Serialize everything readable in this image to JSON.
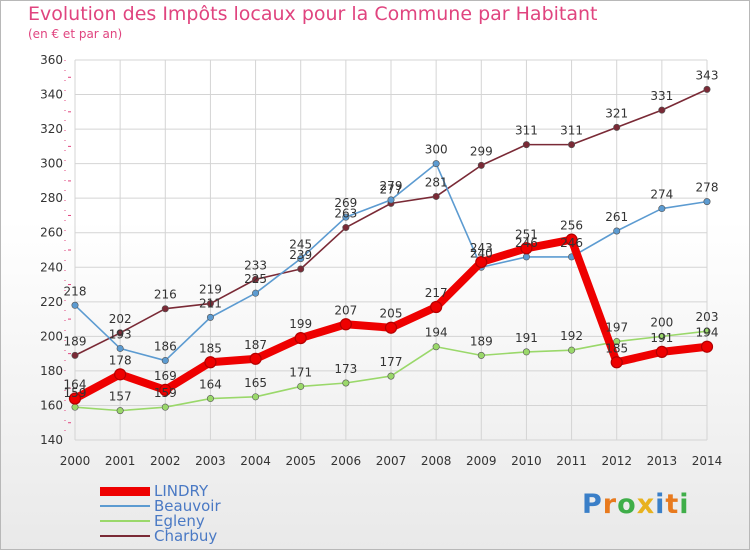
{
  "chart_data": {
    "type": "line",
    "title": "Evolution des Impôts locaux pour la Commune par Habitant",
    "subtitle": "(en € et par an)",
    "categories": [
      "2000",
      "2001",
      "2002",
      "2003",
      "2004",
      "2005",
      "2006",
      "2007",
      "2008",
      "2009",
      "2010",
      "2011",
      "2012",
      "2013",
      "2014"
    ],
    "ylim": [
      140,
      360
    ],
    "yticks": [
      140,
      160,
      180,
      200,
      220,
      240,
      260,
      280,
      300,
      320,
      340,
      360
    ],
    "grid": true,
    "legend_position": "bottom-left",
    "series": [
      {
        "name": "Charbuy",
        "color": "#7a2a36",
        "values": [
          189,
          202,
          216,
          219,
          233,
          239,
          263,
          277,
          281,
          299,
          311,
          311,
          321,
          331,
          343
        ]
      },
      {
        "name": "Beauvoir",
        "color": "#5c9bd1",
        "values": [
          218,
          193,
          186,
          211,
          225,
          245,
          269,
          279,
          300,
          240,
          246,
          246,
          261,
          274,
          278
        ]
      },
      {
        "name": "Egleny",
        "color": "#9ad86a",
        "values": [
          159,
          157,
          159,
          164,
          165,
          171,
          173,
          177,
          194,
          189,
          191,
          192,
          197,
          200,
          203
        ]
      },
      {
        "name": "LINDRY",
        "color": "#ee0000",
        "values": [
          164,
          178,
          169,
          185,
          187,
          199,
          207,
          205,
          217,
          243,
          251,
          256,
          185,
          191,
          194
        ]
      }
    ],
    "legend": [
      "LINDRY",
      "Beauvoir",
      "Egleny",
      "Charbuy"
    ]
  },
  "branding": {
    "logo_text": "Proxiti"
  }
}
